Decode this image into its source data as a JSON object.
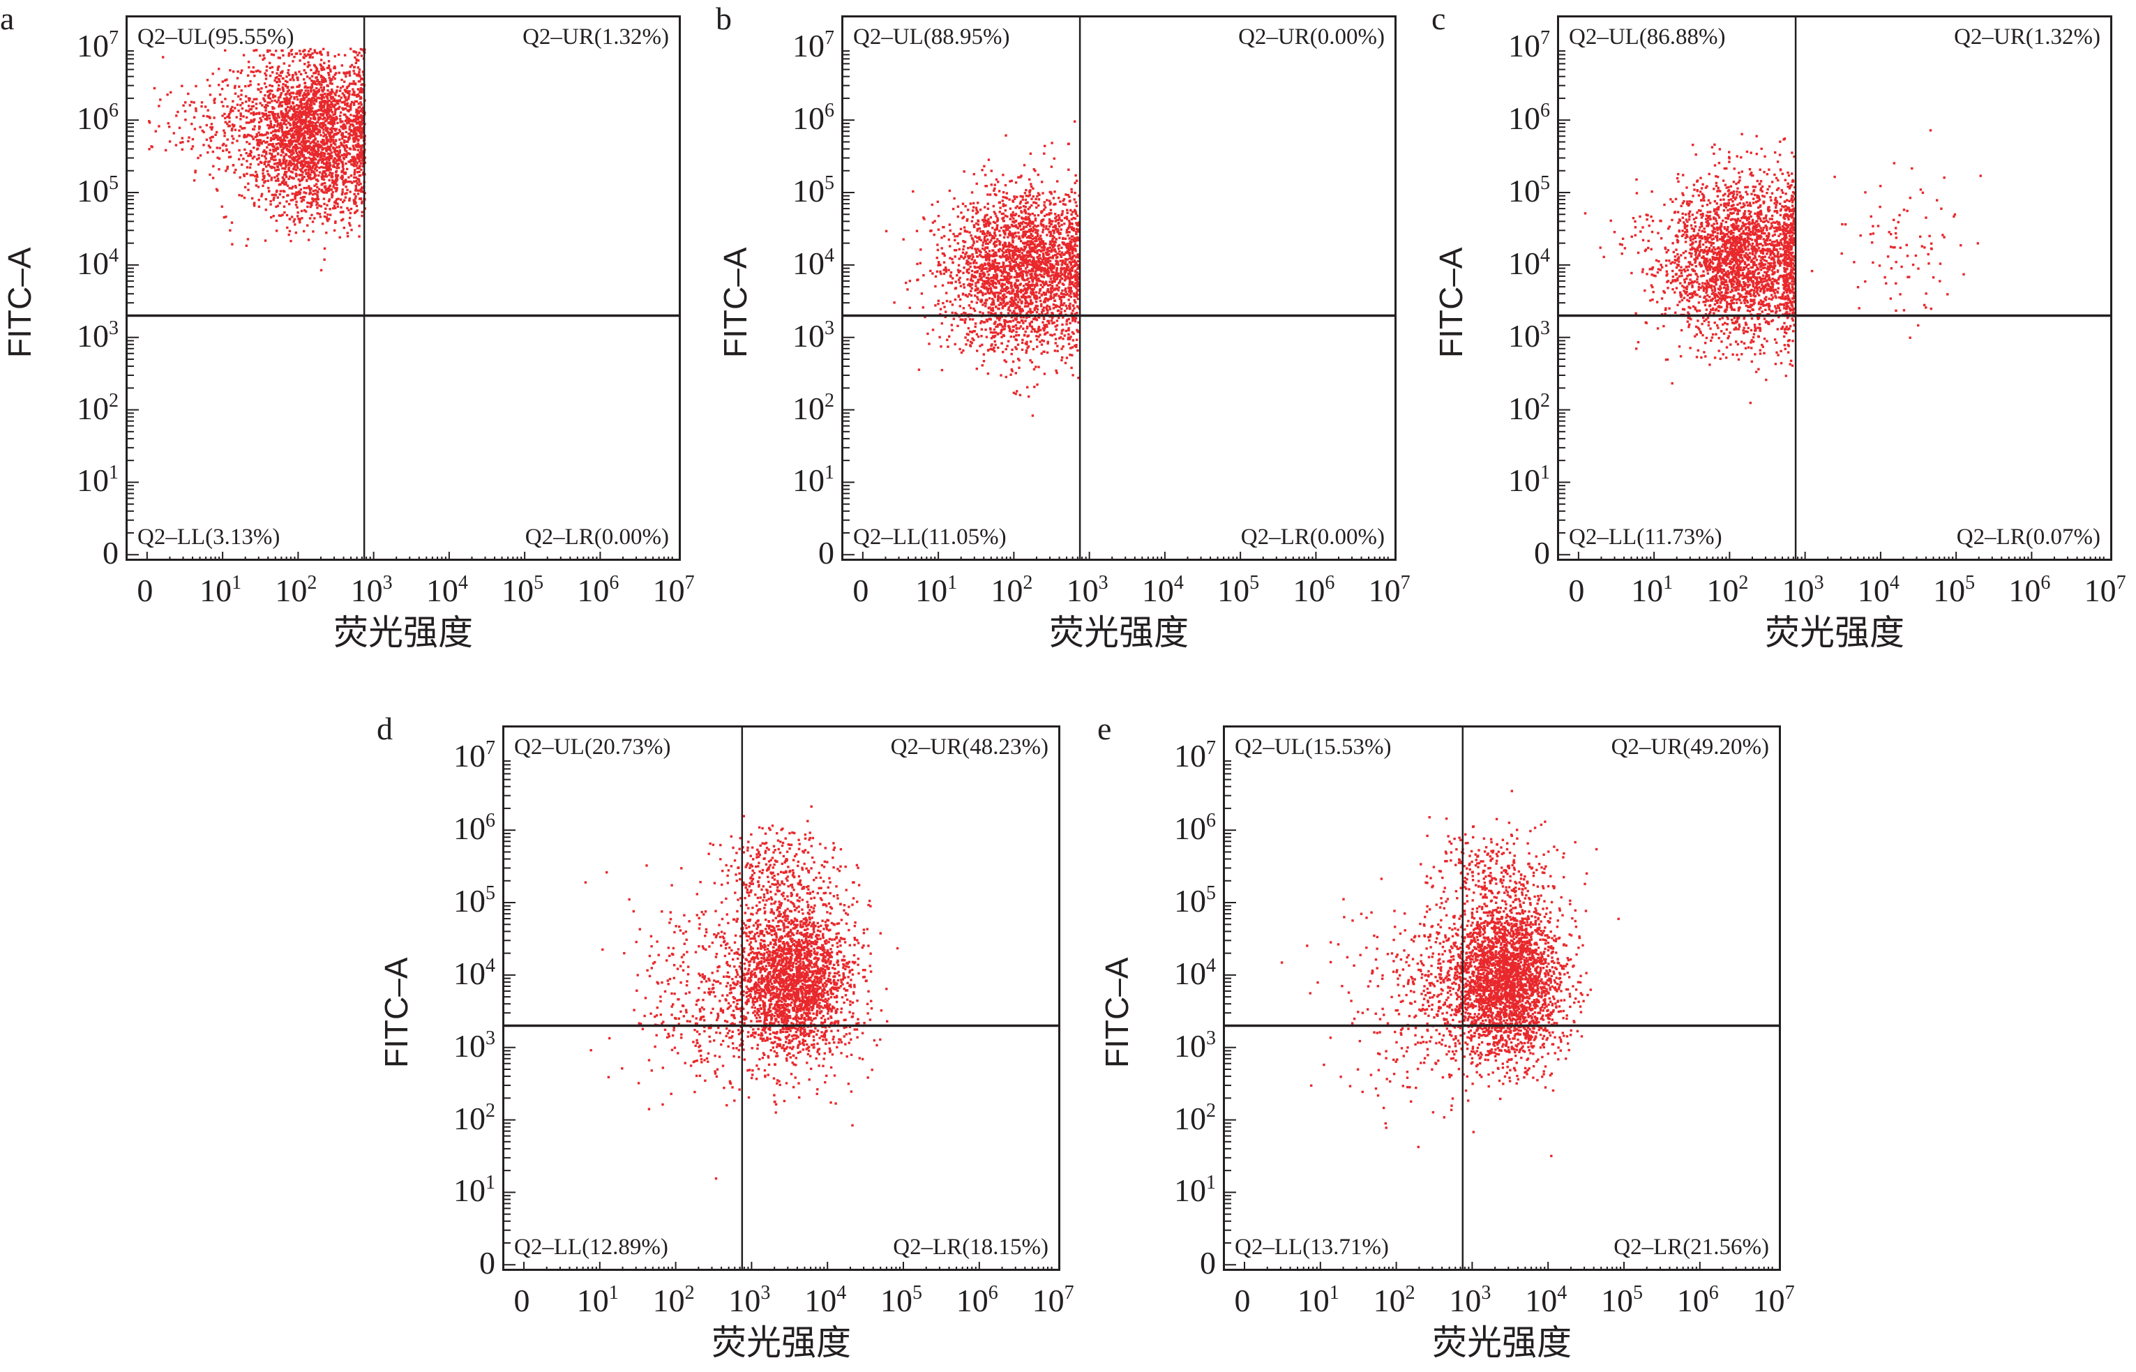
{
  "chart_data": [
    {
      "panel": "a",
      "type": "scatter",
      "xlabel": "荧光强度",
      "ylabel": "FITC–A",
      "x_ticks": [
        "0",
        "10|1",
        "10|2",
        "10|3",
        "10|4",
        "10|5",
        "10|6",
        "10|7"
      ],
      "y_ticks": [
        "0",
        "10|1",
        "10|2",
        "10|3",
        "10|4",
        "10|5",
        "10|6",
        "10|7"
      ],
      "gate": {
        "x": 750,
        "y": 2000
      },
      "quadrants": {
        "UL": "Q2–UL(95.55%)",
        "UR": "Q2–UR(1.32%)",
        "LL": "Q2–LL(3.13%)",
        "LR": "Q2–LR(0.00%)"
      },
      "clusters": [
        {
          "cx": 2.2,
          "cy": 5.8,
          "sx": 0.45,
          "sy": 0.55,
          "n": 2600,
          "max_x": 2.87
        },
        {
          "cx": 1.2,
          "cy": 5.9,
          "sx": 0.6,
          "sy": 0.4,
          "n": 250
        }
      ],
      "color": "#e8282c"
    },
    {
      "panel": "b",
      "type": "scatter",
      "xlabel": "荧光强度",
      "ylabel": "FITC–A",
      "x_ticks": [
        "0",
        "10|1",
        "10|2",
        "10|3",
        "10|4",
        "10|5",
        "10|6",
        "10|7"
      ],
      "y_ticks": [
        "0",
        "10|1",
        "10|2",
        "10|3",
        "10|4",
        "10|5",
        "10|6",
        "10|7"
      ],
      "gate": {
        "x": 750,
        "y": 2000
      },
      "quadrants": {
        "UL": "Q2–UL(88.95%)",
        "UR": "Q2–UR(0.00%)",
        "LL": "Q2–LL(11.05%)",
        "LR": "Q2–LR(0.00%)"
      },
      "clusters": [
        {
          "cx": 2.1,
          "cy": 3.95,
          "sx": 0.5,
          "sy": 0.55,
          "n": 2600,
          "max_x": 2.85
        }
      ],
      "color": "#e8282c"
    },
    {
      "panel": "c",
      "type": "scatter",
      "xlabel": "荧光强度",
      "ylabel": "FITC–A",
      "x_ticks": [
        "0",
        "10|1",
        "10|2",
        "10|3",
        "10|4",
        "10|5",
        "10|6",
        "10|7"
      ],
      "y_ticks": [
        "0",
        "10|1",
        "10|2",
        "10|3",
        "10|4",
        "10|5",
        "10|6",
        "10|7"
      ],
      "gate": {
        "x": 750,
        "y": 2000
      },
      "quadrants": {
        "UL": "Q2–UL(86.88%)",
        "UR": "Q2–UR(1.32%)",
        "LL": "Q2–LL(11.73%)",
        "LR": "Q2–LR(0.07%)"
      },
      "clusters": [
        {
          "cx": 2.15,
          "cy": 4.1,
          "sx": 0.55,
          "sy": 0.55,
          "n": 2600,
          "max_x": 2.85
        },
        {
          "cx": 4.3,
          "cy": 4.3,
          "sx": 0.4,
          "sy": 0.5,
          "n": 90
        }
      ],
      "color": "#e8282c"
    },
    {
      "panel": "d",
      "type": "scatter",
      "xlabel": "荧光强度",
      "ylabel": "FITC–A",
      "x_ticks": [
        "0",
        "10|1",
        "10|2",
        "10|3",
        "10|4",
        "10|5",
        "10|6",
        "10|7"
      ],
      "y_ticks": [
        "0",
        "10|1",
        "10|2",
        "10|3",
        "10|4",
        "10|5",
        "10|6",
        "10|7"
      ],
      "gate": {
        "x": 750,
        "y": 2000
      },
      "quadrants": {
        "UL": "Q2–UL(20.73%)",
        "UR": "Q2–UR(48.23%)",
        "LL": "Q2–LL(12.89%)",
        "LR": "Q2–LR(18.15%)"
      },
      "clusters": [
        {
          "cx": 3.55,
          "cy": 3.95,
          "sx": 0.38,
          "sy": 0.55,
          "n": 2400
        },
        {
          "cx": 2.6,
          "cy": 3.8,
          "sx": 0.6,
          "sy": 0.7,
          "n": 500
        },
        {
          "cx": 3.4,
          "cy": 5.5,
          "sx": 0.4,
          "sy": 0.3,
          "n": 260
        }
      ],
      "color": "#e8282c"
    },
    {
      "panel": "e",
      "type": "scatter",
      "xlabel": "荧光强度",
      "ylabel": "FITC–A",
      "x_ticks": [
        "0",
        "10|1",
        "10|2",
        "10|3",
        "10|4",
        "10|5",
        "10|6",
        "10|7"
      ],
      "y_ticks": [
        "0",
        "10|1",
        "10|2",
        "10|3",
        "10|4",
        "10|5",
        "10|6",
        "10|7"
      ],
      "gate": {
        "x": 750,
        "y": 2000
      },
      "quadrants": {
        "UL": "Q2–UL(15.53%)",
        "UR": "Q2–UR(49.20%)",
        "LL": "Q2–LL(13.71%)",
        "LR": "Q2–LR(21.56%)"
      },
      "clusters": [
        {
          "cx": 3.45,
          "cy": 3.95,
          "sx": 0.38,
          "sy": 0.55,
          "n": 2800
        },
        {
          "cx": 2.5,
          "cy": 3.8,
          "sx": 0.6,
          "sy": 0.7,
          "n": 450
        },
        {
          "cx": 3.3,
          "cy": 5.5,
          "sx": 0.4,
          "sy": 0.3,
          "n": 220
        }
      ],
      "color": "#e8282c"
    }
  ]
}
